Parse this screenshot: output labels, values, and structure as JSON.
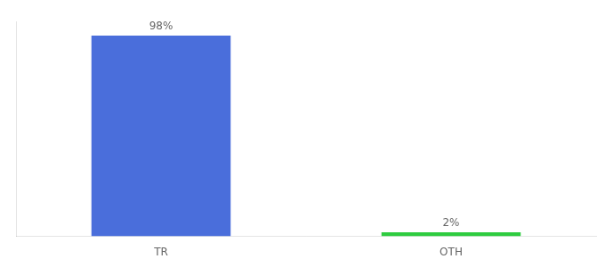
{
  "chart_data": {
    "type": "bar",
    "categories": [
      "TR",
      "OTH"
    ],
    "values": [
      98,
      2
    ],
    "value_labels": [
      "98%",
      "2%"
    ],
    "colors": [
      "#4a6edb",
      "#2ecc40"
    ],
    "ylim": [
      0,
      105
    ],
    "data_labels": true,
    "tick_labels": "x",
    "grid": false
  }
}
